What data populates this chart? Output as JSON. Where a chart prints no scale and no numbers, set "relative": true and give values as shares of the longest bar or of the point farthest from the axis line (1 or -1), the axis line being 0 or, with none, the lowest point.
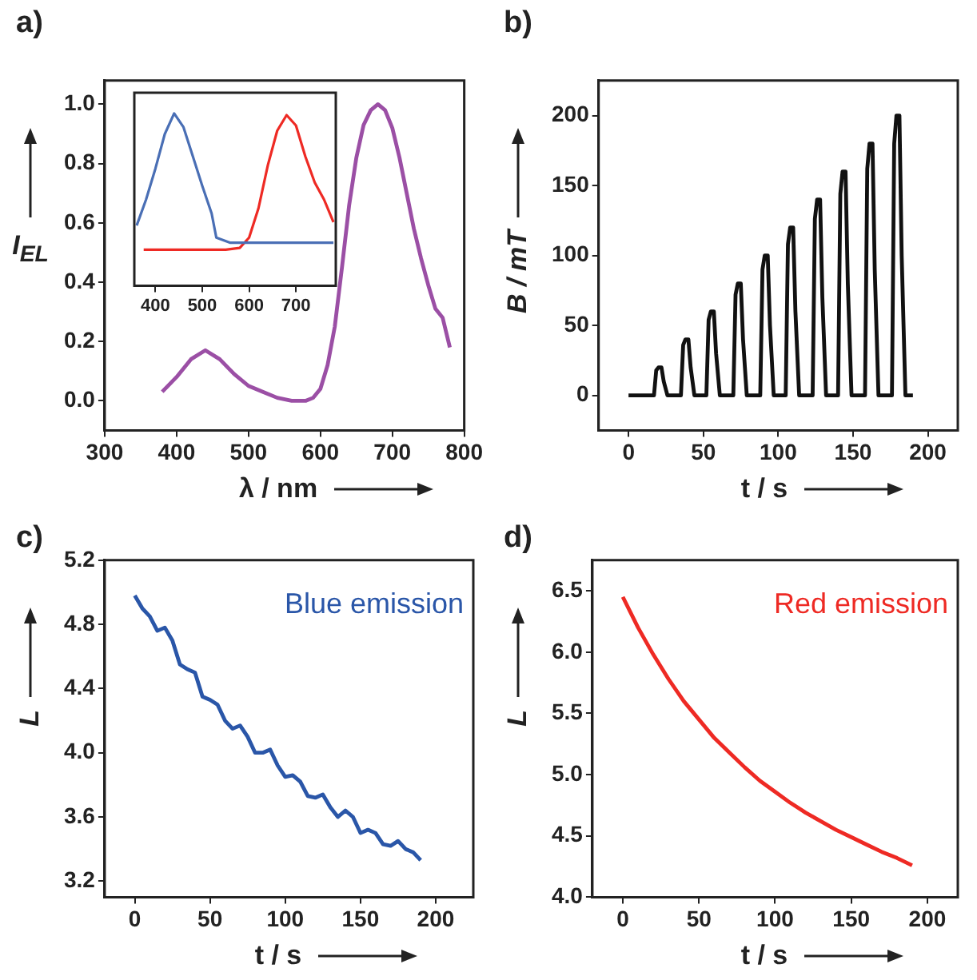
{
  "chart_data": [
    {
      "type": "line",
      "title": "a)",
      "xlabel": "λ / nm",
      "ylabel": "I$_{EL}$",
      "xlim": [
        300,
        800
      ],
      "ylim": [
        -0.1,
        1.08
      ],
      "xticks": [
        300,
        400,
        500,
        600,
        700,
        800
      ],
      "yticks": [
        {
          "value": 0,
          "label": "0.0"
        },
        0.2,
        0.4,
        0.6,
        0.8,
        {
          "value": 1,
          "label": "1.0"
        }
      ],
      "marker": "none",
      "series": [
        {
          "color": "#9b4fa5",
          "x": [
            380,
            400,
            420,
            440,
            460,
            480,
            500,
            520,
            540,
            560,
            580,
            590,
            600,
            610,
            620,
            630,
            640,
            650,
            660,
            670,
            680,
            690,
            700,
            710,
            720,
            730,
            740,
            750,
            760,
            770,
            780
          ],
          "values": [
            0.03,
            0.08,
            0.14,
            0.17,
            0.14,
            0.09,
            0.05,
            0.03,
            0.01,
            0.0,
            0.0,
            0.01,
            0.04,
            0.12,
            0.25,
            0.45,
            0.66,
            0.82,
            0.93,
            0.98,
            1.0,
            0.98,
            0.92,
            0.82,
            0.7,
            0.58,
            0.48,
            0.39,
            0.31,
            0.28,
            0.18
          ]
        }
      ]
    },
    {
      "type": "line",
      "relative": true,
      "xlim": [
        355,
        785
      ],
      "xticks": [
        400,
        500,
        600,
        700
      ],
      "marker": "none",
      "series": [
        {
          "color": "#4a6fb5",
          "x": [
            360,
            380,
            400,
            420,
            440,
            460,
            480,
            500,
            520,
            530,
            560,
            600,
            650,
            700,
            750,
            780
          ],
          "values": [
            0.35,
            0.5,
            0.68,
            0.88,
            1.0,
            0.92,
            0.75,
            0.58,
            0.42,
            0.28,
            0.25,
            0.25,
            0.25,
            0.25,
            0.25,
            0.25
          ]
        },
        {
          "color": "#ee2a24",
          "x": [
            375,
            450,
            550,
            580,
            600,
            620,
            640,
            660,
            680,
            700,
            720,
            740,
            760,
            780
          ],
          "values": [
            0.21,
            0.21,
            0.21,
            0.22,
            0.28,
            0.45,
            0.7,
            0.9,
            0.99,
            0.93,
            0.75,
            0.6,
            0.5,
            0.37
          ]
        }
      ]
    },
    {
      "type": "line",
      "title": "b)",
      "xlabel": "t / s",
      "ylabel": "B / mT",
      "xlim": [
        -20,
        220
      ],
      "ylim": [
        -25,
        225
      ],
      "xticks": [
        0,
        50,
        100,
        150,
        200
      ],
      "yticks": [
        0,
        50,
        100,
        150,
        200
      ],
      "marker": "none",
      "series": [
        {
          "color": "#111111",
          "x": [
            0,
            17,
            18.5,
            20,
            22,
            23.5,
            26,
            35,
            36.5,
            38,
            40,
            41.5,
            44,
            52,
            53.5,
            55,
            57,
            58.5,
            61,
            70,
            71.5,
            73,
            75,
            76.5,
            79,
            88,
            89.5,
            91,
            93,
            94.5,
            97,
            105,
            106.5,
            108,
            110,
            111.5,
            114,
            123,
            124.5,
            126,
            128,
            129.5,
            132,
            140,
            141.5,
            143,
            145,
            146.5,
            149,
            158,
            159.5,
            161,
            163,
            164.5,
            167,
            176,
            177.5,
            179,
            181,
            182.5,
            185,
            190
          ],
          "values": [
            0,
            0,
            18,
            20,
            20,
            10,
            0,
            0,
            36,
            40,
            40,
            20,
            0,
            0,
            54,
            60,
            60,
            30,
            0,
            0,
            72,
            80,
            80,
            40,
            0,
            0,
            90,
            100,
            100,
            50,
            0,
            0,
            108,
            120,
            120,
            60,
            0,
            0,
            126,
            140,
            140,
            70,
            0,
            0,
            144,
            160,
            160,
            80,
            0,
            0,
            162,
            180,
            180,
            90,
            0,
            0,
            180,
            200,
            200,
            100,
            0,
            0
          ]
        }
      ]
    },
    {
      "type": "line",
      "title": "c)",
      "xlabel": "t / s",
      "ylabel": "L",
      "xlim": [
        -20,
        225
      ],
      "ylim": [
        3.1,
        5.2
      ],
      "xticks": [
        0,
        50,
        100,
        150,
        200
      ],
      "yticks": [
        3.2,
        3.6,
        {
          "value": 4,
          "label": "4.0"
        },
        4.4,
        4.8,
        5.2
      ],
      "marker": "none",
      "series": [
        {
          "name": "Blue emission",
          "color": "#2a56a8",
          "x": [
            0,
            5,
            10,
            15,
            20,
            25,
            30,
            35,
            40,
            45,
            50,
            55,
            60,
            65,
            70,
            75,
            80,
            85,
            90,
            95,
            100,
            105,
            110,
            115,
            120,
            125,
            130,
            135,
            140,
            145,
            150,
            155,
            160,
            165,
            170,
            175,
            180,
            185,
            190
          ],
          "values": [
            4.98,
            4.9,
            4.85,
            4.76,
            4.78,
            4.7,
            4.55,
            4.52,
            4.5,
            4.35,
            4.33,
            4.3,
            4.2,
            4.15,
            4.17,
            4.1,
            4.0,
            4.0,
            4.02,
            3.92,
            3.85,
            3.86,
            3.82,
            3.73,
            3.72,
            3.74,
            3.66,
            3.6,
            3.64,
            3.6,
            3.5,
            3.52,
            3.5,
            3.43,
            3.42,
            3.45,
            3.4,
            3.38,
            3.33
          ]
        }
      ]
    },
    {
      "type": "line",
      "title": "d)",
      "xlabel": "t / s",
      "ylabel": "L",
      "xlim": [
        -20,
        220
      ],
      "ylim": [
        4.0,
        6.75
      ],
      "xticks": [
        0,
        50,
        100,
        150,
        200
      ],
      "yticks": [
        {
          "value": 4,
          "label": "4.0"
        },
        4.5,
        {
          "value": 5,
          "label": "5.0"
        },
        5.5,
        {
          "value": 6,
          "label": "6.0"
        },
        6.5
      ],
      "marker": "none",
      "series": [
        {
          "name": "Red emission",
          "color": "#ee2a24",
          "x": [
            0,
            10,
            20,
            30,
            40,
            50,
            60,
            70,
            80,
            90,
            100,
            110,
            120,
            130,
            140,
            150,
            160,
            170,
            180,
            190
          ],
          "values": [
            6.45,
            6.2,
            5.98,
            5.78,
            5.6,
            5.45,
            5.3,
            5.18,
            5.06,
            4.95,
            4.86,
            4.77,
            4.69,
            4.62,
            4.55,
            4.49,
            4.43,
            4.37,
            4.32,
            4.26
          ]
        }
      ]
    }
  ]
}
